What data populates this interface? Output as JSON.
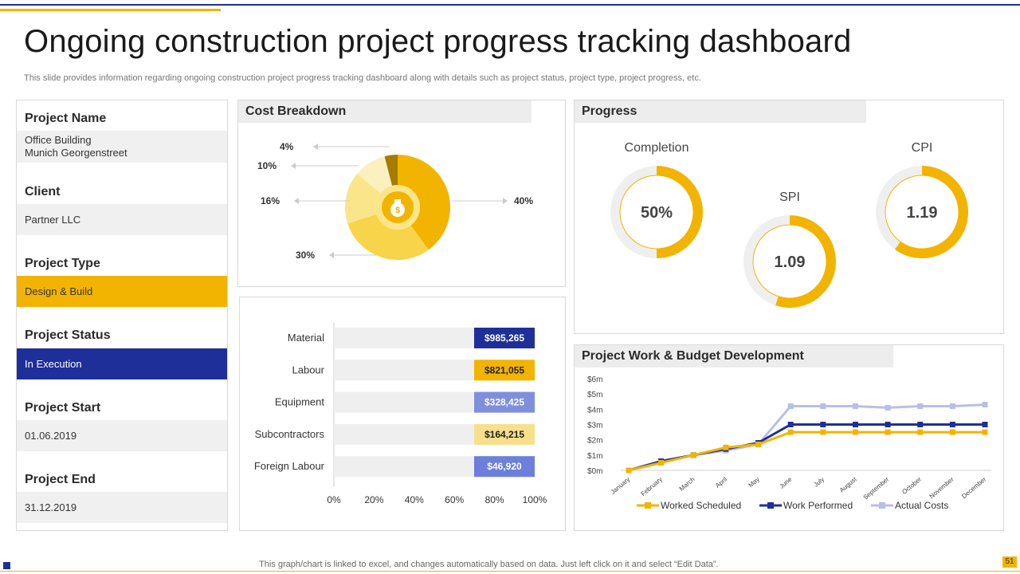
{
  "header": {
    "title": "Ongoing construction project progress tracking dashboard",
    "subtitle": "This slide provides information regarding ongoing construction project progress tracking dashboard along with details such as project status, project type,  project progress, etc."
  },
  "project_info": {
    "name_label": "Project Name",
    "name_line1": "Office Building",
    "name_line2": "Munich Georgenstreet",
    "client_label": "Client",
    "client_value": "Partner LLC",
    "type_label": "Project Type",
    "type_value": "Design & Build",
    "status_label": "Project Status",
    "status_value": "In Execution",
    "start_label": "Project Start",
    "start_value": "01.06.2019",
    "end_label": "Project End",
    "end_value": "31.12.2019"
  },
  "cost_panel": {
    "title": "Cost Breakdown",
    "icon": "money-bag-icon"
  },
  "progress_panel": {
    "title": "Progress"
  },
  "work_panel": {
    "title": "Project Work & Budget Development"
  },
  "colors": {
    "gold": "#f2b400",
    "navy": "#1f2f99",
    "lavender": "#b8bfe6",
    "periwinkle": "#7f8fde",
    "pale_yellow": "#f7e08c",
    "donut_colors": [
      "#f2b400",
      "#f8d44a",
      "#fbe58a",
      "#fdf0c0",
      "#a67c00"
    ]
  },
  "footer": {
    "note": "This graph/chart is linked to excel,  and changes automatically based on data. Just left click on it and select “Edit Data”.",
    "page": "51"
  },
  "chart_data": [
    {
      "type": "pie",
      "title": "Cost Breakdown",
      "labels": [
        "40%",
        "30%",
        "16%",
        "10%",
        "4%"
      ],
      "values": [
        40,
        30,
        16,
        10,
        4
      ]
    },
    {
      "type": "bar",
      "orientation": "horizontal",
      "stacked_percent": true,
      "categories": [
        "Material",
        "Labour",
        "Equipment",
        "Subcontractors",
        "Foreign Labour"
      ],
      "values": [
        985265,
        821055,
        328425,
        164215,
        46920
      ],
      "value_labels": [
        "$985,265",
        "$821,055",
        "$328,425",
        "$164,215",
        "$46,920"
      ],
      "bar_colors": [
        "#1f2f99",
        "#f2b400",
        "#7f8fde",
        "#f7e08c",
        "#6c7fdc"
      ],
      "value_label_colors": [
        "#ffffff",
        "#222222",
        "#ffffff",
        "#222222",
        "#ffffff"
      ],
      "xticks": [
        "0%",
        "20%",
        "40%",
        "60%",
        "80%",
        "100%"
      ],
      "xlim": [
        0,
        100
      ],
      "grid": false
    },
    {
      "type": "pie",
      "title": "Progress",
      "gauges": [
        {
          "label": "Completion",
          "display": "50%",
          "fraction": 0.5
        },
        {
          "label": "SPI",
          "display": "1.09",
          "fraction": 0.55
        },
        {
          "label": "CPI",
          "display": "1.19",
          "fraction": 0.6
        }
      ]
    },
    {
      "type": "line",
      "title": "Project Work & Budget Development",
      "categories": [
        "January",
        "February",
        "March",
        "April",
        "May",
        "June",
        "July",
        "August",
        "September",
        "October",
        "November",
        "December"
      ],
      "yticks": [
        "$0m",
        "$1m",
        "$2m",
        "$3m",
        "$4m",
        "$5m",
        "$6m"
      ],
      "ylim": [
        0,
        6
      ],
      "legend": "bottom",
      "series": [
        {
          "name": "Worked Scheduled",
          "color": "#f2b400",
          "values": [
            0,
            0.5,
            1.0,
            1.5,
            1.7,
            2.5,
            2.5,
            2.5,
            2.5,
            2.5,
            2.5,
            2.5
          ]
        },
        {
          "name": "Work Performed",
          "color": "#1f2f99",
          "values": [
            0,
            0.6,
            1.0,
            1.4,
            1.8,
            3.0,
            3.0,
            3.0,
            3.0,
            3.0,
            3.0,
            3.0
          ]
        },
        {
          "name": "Actual Costs",
          "color": "#b8bfe6",
          "values": [
            0,
            0.5,
            1.0,
            1.3,
            1.7,
            4.2,
            4.2,
            4.2,
            4.1,
            4.2,
            4.2,
            4.3
          ]
        }
      ]
    }
  ]
}
